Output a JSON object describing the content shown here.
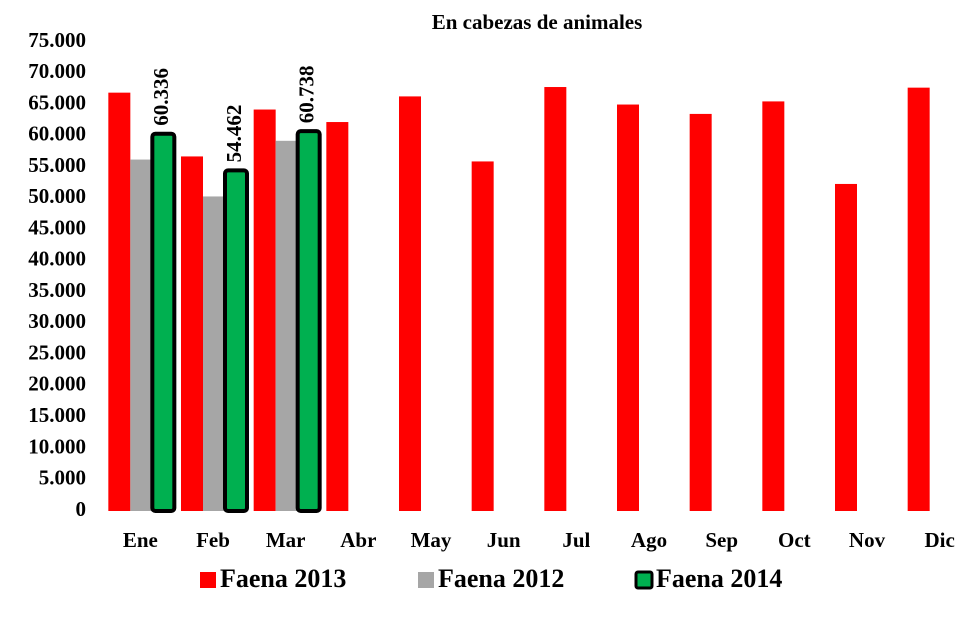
{
  "chart_data": {
    "type": "bar",
    "title": "En cabezas de animales",
    "categories": [
      "Ene",
      "Feb",
      "Mar",
      "Abr",
      "May",
      "Jun",
      "Jul",
      "Ago",
      "Sep",
      "Oct",
      "Nov",
      "Dic"
    ],
    "series": [
      {
        "name": "Faena 2013",
        "color": "#ff0000",
        "values": [
          66900,
          56700,
          64200,
          62200,
          66300,
          55900,
          67800,
          65000,
          63500,
          65500,
          52300,
          67700
        ]
      },
      {
        "name": "Faena 2012",
        "color": "#a6a6a6",
        "values": [
          56200,
          50300,
          59200,
          null,
          null,
          null,
          null,
          null,
          null,
          null,
          null,
          null
        ]
      },
      {
        "name": "Faena 2014",
        "color": "#00b050",
        "values": [
          60336,
          54462,
          60738,
          null,
          null,
          null,
          null,
          null,
          null,
          null,
          null,
          null
        ],
        "value_labels": [
          "60.336",
          "54.462",
          "60.738",
          null,
          null,
          null,
          null,
          null,
          null,
          null,
          null,
          null
        ]
      }
    ],
    "ylim": [
      0,
      75000
    ],
    "yticks": [
      0,
      {
        "value": 5000,
        "label": "5.000"
      },
      {
        "value": 10000,
        "label": "10.000"
      },
      {
        "value": 15000,
        "label": "15.000"
      },
      {
        "value": 20000,
        "label": "20.000"
      },
      {
        "value": 25000,
        "label": "25.000"
      },
      {
        "value": 30000,
        "label": "30.000"
      },
      {
        "value": 35000,
        "label": "35.000"
      },
      {
        "value": 40000,
        "label": "40.000"
      },
      {
        "value": 45000,
        "label": "45.000"
      },
      {
        "value": 50000,
        "label": "50.000"
      },
      {
        "value": 55000,
        "label": "55.000"
      },
      {
        "value": 60000,
        "label": "60.000"
      },
      {
        "value": 65000,
        "label": "65.000"
      },
      {
        "value": 70000,
        "label": "70.000"
      },
      {
        "value": 75000,
        "label": "75.000"
      }
    ],
    "grid": false,
    "legend": "bottom"
  }
}
